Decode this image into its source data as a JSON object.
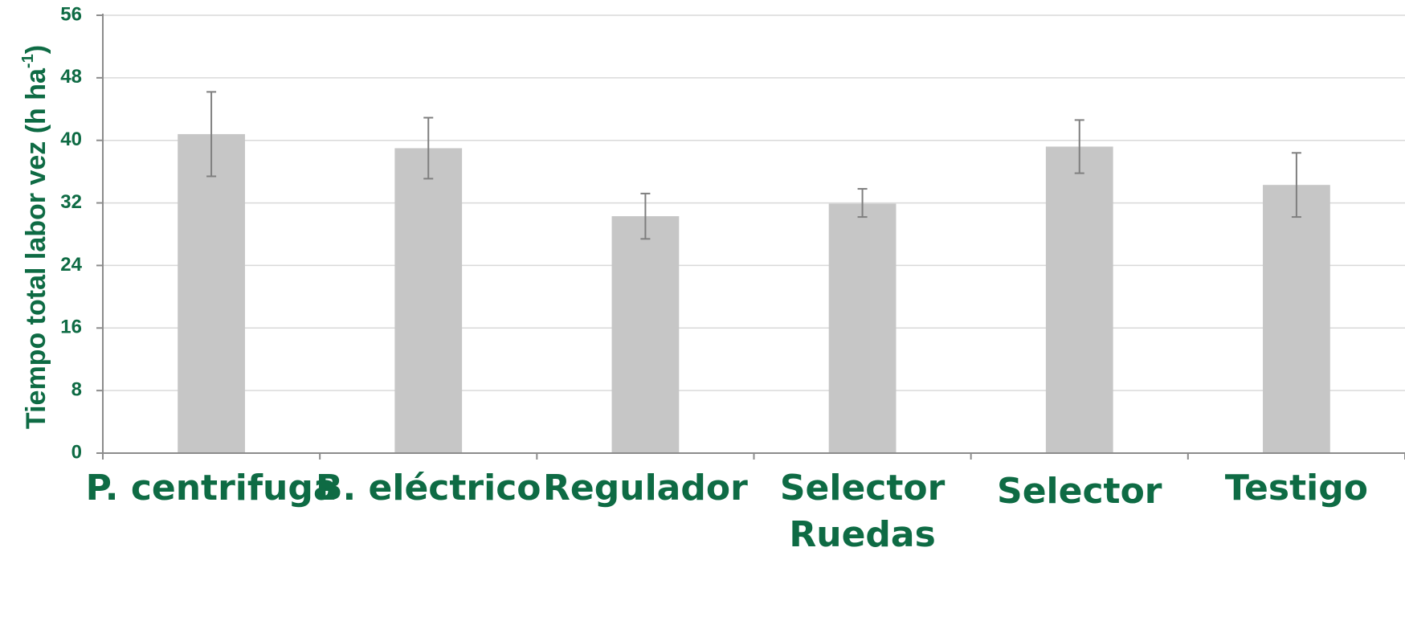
{
  "chart_data": {
    "type": "bar",
    "categories": [
      [
        "P. centrifuga"
      ],
      [
        "B. eléctrico"
      ],
      [
        "Regulador"
      ],
      [
        "Selector",
        "Ruedas"
      ],
      [
        "Selector"
      ],
      [
        "Testigo"
      ]
    ],
    "values": [
      40.8,
      39.0,
      30.3,
      31.9,
      39.2,
      34.3
    ],
    "error_low": [
      35.4,
      35.1,
      27.4,
      30.2,
      35.8,
      30.2
    ],
    "error_high": [
      46.2,
      42.9,
      33.2,
      33.8,
      42.6,
      38.4
    ],
    "ylabel": "Tiempo total labor vez  (h ha",
    "ylabel_sup": "-1",
    "ylabel_suffix": ")",
    "ylim": [
      0,
      56
    ],
    "yticks": [
      "0",
      "8",
      "16",
      "24",
      "32",
      "40",
      "48",
      "56"
    ],
    "grid": true,
    "legend": "none",
    "colors": {
      "bar": "#c6c6c6",
      "text": "#0e6b44",
      "error_bar": "#7f7f7f",
      "grid": "#d9d9d9",
      "axis": "#8c8c8c"
    }
  }
}
